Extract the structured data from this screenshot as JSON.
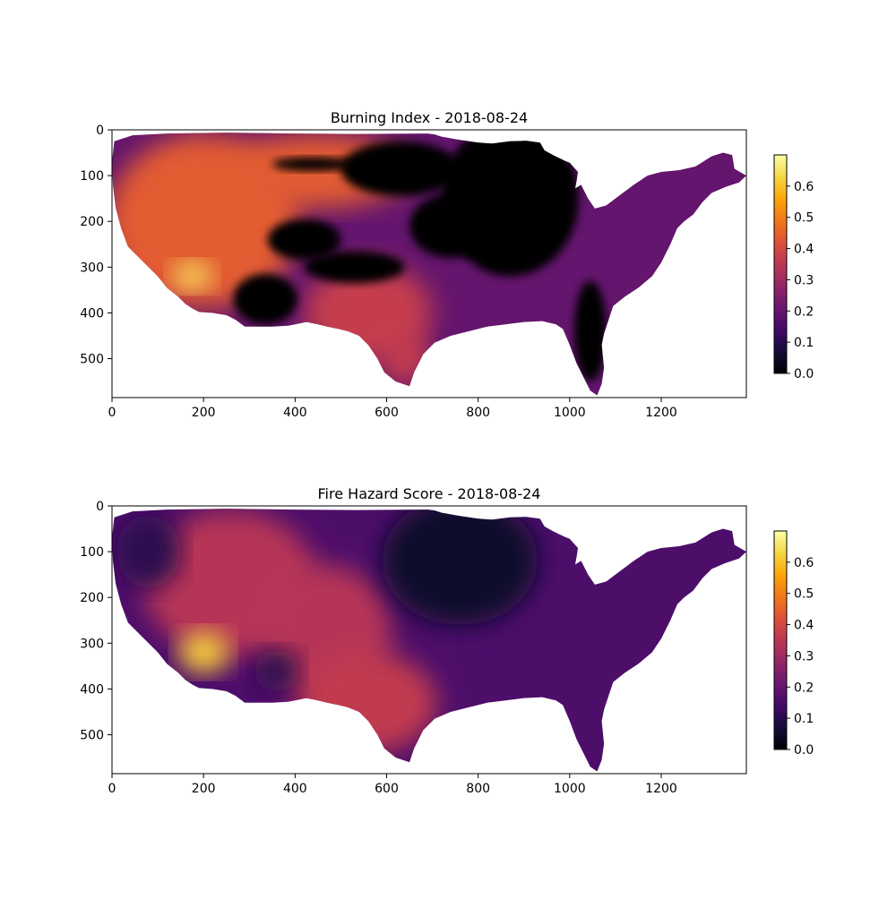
{
  "chart_data": [
    {
      "type": "heatmap",
      "title": "Burning Index - 2018-08-24",
      "xlabel": "",
      "ylabel": "",
      "xlim": [
        0,
        1386
      ],
      "ylim": [
        585,
        0
      ],
      "x_ticks": [
        "0",
        "200",
        "400",
        "600",
        "800",
        "1000",
        "1200"
      ],
      "y_ticks": [
        "0",
        "100",
        "200",
        "300",
        "400",
        "500"
      ],
      "colormap": "inferno",
      "colorbar": {
        "range": [
          0,
          0.7
        ],
        "ticks": [
          "0.0",
          "0.1",
          "0.2",
          "0.3",
          "0.4",
          "0.5",
          "0.6"
        ]
      },
      "regions": [
        {
          "name": "west",
          "value": 0.44
        },
        {
          "name": "southwest-hotspot",
          "value": 0.65
        },
        {
          "name": "southern-plains",
          "value": 0.37
        },
        {
          "name": "east",
          "value": 0.17
        },
        {
          "name": "upper-midwest",
          "value": 0.0
        },
        {
          "name": "central-patches",
          "value": 0.0
        },
        {
          "name": "florida",
          "value": 0.0
        }
      ]
    },
    {
      "type": "heatmap",
      "title": "Fire Hazard Score - 2018-08-24",
      "xlabel": "",
      "ylabel": "",
      "xlim": [
        0,
        1386
      ],
      "ylim": [
        585,
        0
      ],
      "x_ticks": [
        "0",
        "200",
        "400",
        "600",
        "800",
        "1000",
        "1200"
      ],
      "y_ticks": [
        "0",
        "100",
        "200",
        "300",
        "400",
        "500"
      ],
      "colormap": "inferno",
      "colorbar": {
        "range": [
          0,
          0.7
        ],
        "ticks": [
          "0.0",
          "0.1",
          "0.2",
          "0.3",
          "0.4",
          "0.5",
          "0.6"
        ]
      },
      "regions": [
        {
          "name": "west",
          "value": 0.34
        },
        {
          "name": "southwest-hotspot",
          "value": 0.62
        },
        {
          "name": "southern-plains",
          "value": 0.36
        },
        {
          "name": "northern-plains",
          "value": 0.05
        },
        {
          "name": "east",
          "value": 0.16
        },
        {
          "name": "pacific-northwest",
          "value": 0.1
        }
      ]
    }
  ]
}
